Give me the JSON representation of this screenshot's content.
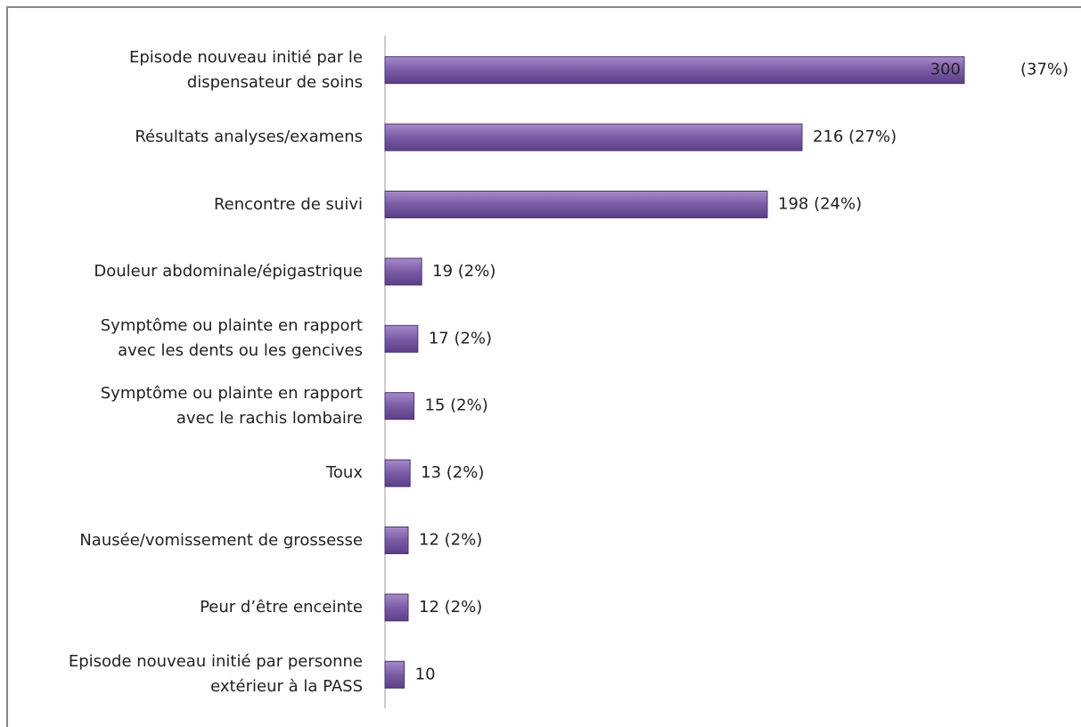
{
  "chart_data": {
    "type": "barh",
    "categories": [
      "Episode nouveau initié par le\ndispensateur de soins",
      "Résultats analyses/examens",
      "Rencontre de suivi",
      "Douleur abdominale/épigastrique",
      "Symptôme ou plainte en rapport\navec les dents ou les gencives",
      "Symptôme ou plainte en rapport\navec le rachis lombaire",
      "Toux",
      "Nausée/vomissement de grossesse",
      "Peur d’être enceinte",
      "Episode nouveau initié par personne\nextérieur à la PASS"
    ],
    "values": [
      300,
      216,
      198,
      19,
      17,
      15,
      13,
      12,
      12,
      10
    ],
    "value_labels": [
      "300",
      "216 (27%)",
      "198 (24%)",
      "19 (2%)",
      "17 (2%)",
      "15 (2%)",
      "13 (2%)",
      "12 (2%)",
      "12 (2%)",
      "10"
    ],
    "annotations": [
      "(37%)"
    ],
    "color": "#7b5ba6",
    "xlim": [
      0,
      300
    ]
  }
}
